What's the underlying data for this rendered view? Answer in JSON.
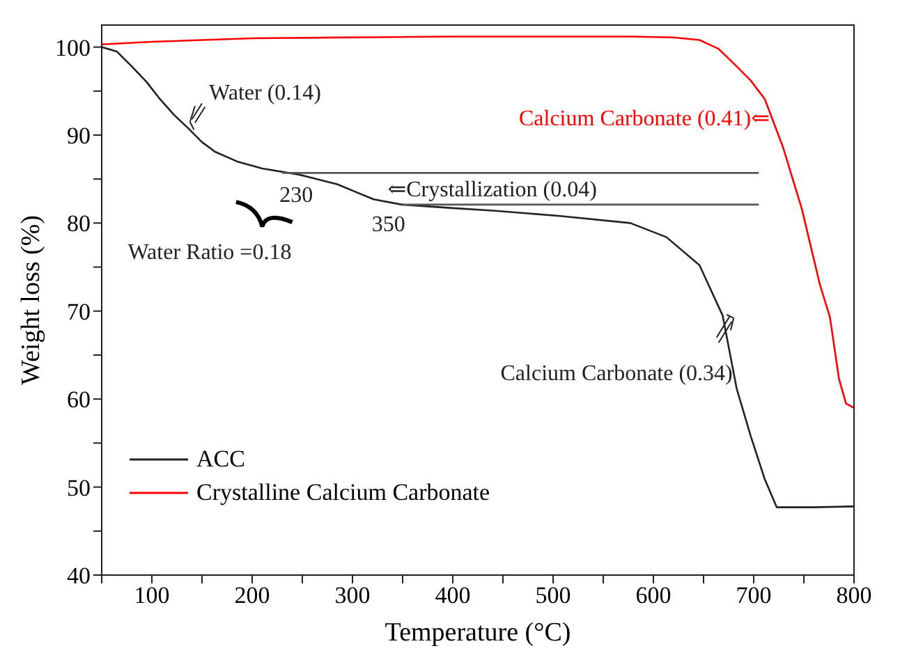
{
  "chart_data": {
    "type": "line",
    "xlabel": "Temperature (°C)",
    "ylabel": "Weight loss (%)",
    "xlim": [
      50,
      800
    ],
    "ylim": [
      40,
      102.5
    ],
    "xticks": [
      {
        "value": 50,
        "label": null
      },
      100,
      {
        "value": 150,
        "label": null
      },
      200,
      {
        "value": 250,
        "label": null
      },
      300,
      {
        "value": 350,
        "label": null
      },
      400,
      {
        "value": 450,
        "label": null
      },
      500,
      {
        "value": 550,
        "label": null
      },
      600,
      {
        "value": 650,
        "label": null
      },
      700,
      {
        "value": 750,
        "label": null
      },
      800
    ],
    "yticks": [
      40,
      {
        "value": 45,
        "label": null
      },
      50,
      {
        "value": 55,
        "label": null
      },
      60,
      {
        "value": 65,
        "label": null
      },
      70,
      {
        "value": 75,
        "label": null
      },
      80,
      {
        "value": 85,
        "label": null
      },
      90,
      {
        "value": 95,
        "label": null
      },
      100
    ],
    "grid": false,
    "legend": "bottom left",
    "marker": "none",
    "line_style": "solid",
    "series": [
      {
        "name": "ACC",
        "color": "#222222",
        "x": [
          50,
          65,
          80,
          95,
          108,
          122,
          136,
          150,
          163,
          185,
          210,
          247,
          285,
          321,
          349,
          400,
          442,
          507,
          577,
          613,
          646,
          669,
          683,
          697,
          711,
          723,
          760,
          800
        ],
        "values": [
          100,
          99.5,
          97.8,
          96,
          94.1,
          92.3,
          90.8,
          89.2,
          88.1,
          87,
          86.2,
          85.5,
          84.4,
          82.7,
          82.1,
          81.7,
          81.4,
          80.8,
          80,
          78.4,
          75.2,
          69.5,
          61.2,
          55.8,
          50.9,
          47.7,
          47.7,
          47.8
        ]
      },
      {
        "name": "Crystalline Calcium Carbonate",
        "color": "#ff0000",
        "x": [
          50,
          100,
          200,
          400,
          577,
          620,
          646,
          665,
          683,
          697,
          711,
          729,
          748,
          766,
          776,
          785,
          792,
          800
        ],
        "values": [
          100.3,
          100.6,
          101,
          101.2,
          101.2,
          101.1,
          100.8,
          99.8,
          97.8,
          96.2,
          94.1,
          88.7,
          81.6,
          73,
          69.3,
          62.3,
          59.5,
          59
        ]
      },
      {
        "color": "#555555",
        "x": [
          230,
          705
        ],
        "values": [
          85.7,
          85.7
        ]
      },
      {
        "color": "#555555",
        "x": [
          350,
          705
        ],
        "values": [
          82.1,
          82.1
        ]
      }
    ],
    "annotations": [
      "Water (0.14)",
      "230",
      "350",
      "⇐Crystallization (0.04)",
      "Water Ratio =0.18",
      "Calcium Carbonate (0.41)⇐",
      "Calcium Carbonate (0.34)"
    ]
  }
}
